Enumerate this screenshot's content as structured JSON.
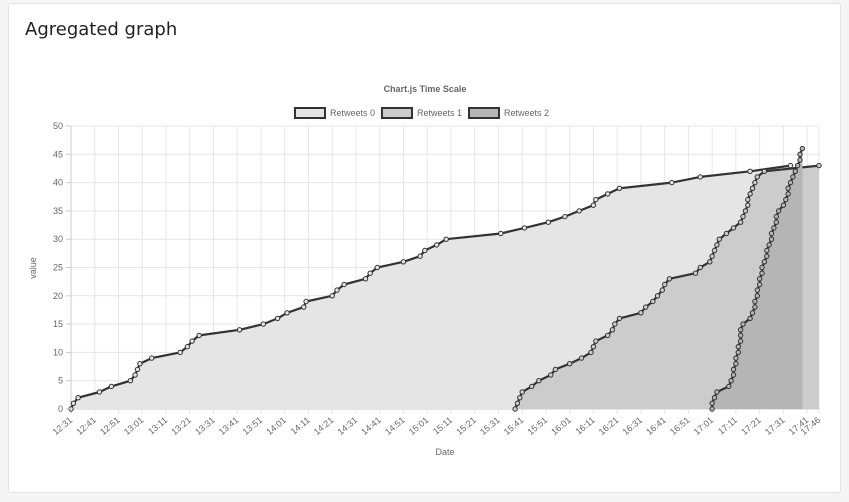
{
  "panel": {
    "title": "Agregated graph"
  },
  "chart_data": {
    "type": "area",
    "title": "Chart.js Time Scale",
    "xlabel": "Date",
    "ylabel": "value",
    "ylim": [
      0,
      50
    ],
    "xlim": [
      "12:31",
      "17:46"
    ],
    "grid": true,
    "legend": "top",
    "y_ticks": [
      "0",
      "5",
      "10",
      "15",
      "20",
      "25",
      "30",
      "35",
      "40",
      "45",
      "50"
    ],
    "x_ticks": [
      "12:31",
      "12:41",
      "12:51",
      "13:01",
      "13:11",
      "13:21",
      "13:31",
      "13:41",
      "13:51",
      "14:01",
      "14:11",
      "14:21",
      "14:31",
      "14:41",
      "14:51",
      "15:01",
      "15:11",
      "15:21",
      "15:31",
      "15:41",
      "15:51",
      "16:01",
      "16:11",
      "16:21",
      "16:31",
      "16:41",
      "16:51",
      "17:01",
      "17:11",
      "17:21",
      "17:31",
      "17:41",
      "17:46"
    ],
    "series": [
      {
        "name": "Retweets 0",
        "fill": "#e5e5e5",
        "points": [
          [
            "12:31",
            0
          ],
          [
            "12:32",
            1
          ],
          [
            "12:34",
            2
          ],
          [
            "12:43",
            3
          ],
          [
            "12:48",
            4
          ],
          [
            "12:56",
            5
          ],
          [
            "12:58",
            6
          ],
          [
            "12:59",
            7
          ],
          [
            "13:00",
            8
          ],
          [
            "13:05",
            9
          ],
          [
            "13:17",
            10
          ],
          [
            "13:20",
            11
          ],
          [
            "13:22",
            12
          ],
          [
            "13:25",
            13
          ],
          [
            "13:42",
            14
          ],
          [
            "13:52",
            15
          ],
          [
            "13:58",
            16
          ],
          [
            "14:02",
            17
          ],
          [
            "14:09",
            18
          ],
          [
            "14:10",
            19
          ],
          [
            "14:21",
            20
          ],
          [
            "14:23",
            21
          ],
          [
            "14:26",
            22
          ],
          [
            "14:35",
            23
          ],
          [
            "14:37",
            24
          ],
          [
            "14:40",
            25
          ],
          [
            "14:51",
            26
          ],
          [
            "14:58",
            27
          ],
          [
            "15:00",
            28
          ],
          [
            "15:05",
            29
          ],
          [
            "15:09",
            30
          ],
          [
            "15:32",
            31
          ],
          [
            "15:42",
            32
          ],
          [
            "15:52",
            33
          ],
          [
            "15:59",
            34
          ],
          [
            "16:05",
            35
          ],
          [
            "16:11",
            36
          ],
          [
            "16:12",
            37
          ],
          [
            "16:17",
            38
          ],
          [
            "16:22",
            39
          ],
          [
            "16:44",
            40
          ],
          [
            "16:56",
            41
          ],
          [
            "17:17",
            42
          ],
          [
            "17:34",
            43
          ]
        ]
      },
      {
        "name": "Retweets 1",
        "fill": "#cccccc",
        "points": [
          [
            "15:38",
            0
          ],
          [
            "15:39",
            1
          ],
          [
            "15:40",
            2
          ],
          [
            "15:41",
            3
          ],
          [
            "15:45",
            4
          ],
          [
            "15:48",
            5
          ],
          [
            "15:53",
            6
          ],
          [
            "15:55",
            7
          ],
          [
            "16:01",
            8
          ],
          [
            "16:06",
            9
          ],
          [
            "16:10",
            10
          ],
          [
            "16:11",
            11
          ],
          [
            "16:12",
            12
          ],
          [
            "16:17",
            13
          ],
          [
            "16:19",
            14
          ],
          [
            "16:20",
            15
          ],
          [
            "16:22",
            16
          ],
          [
            "16:31",
            17
          ],
          [
            "16:33",
            18
          ],
          [
            "16:36",
            19
          ],
          [
            "16:38",
            20
          ],
          [
            "16:40",
            21
          ],
          [
            "16:41",
            22
          ],
          [
            "16:43",
            23
          ],
          [
            "16:54",
            24
          ],
          [
            "16:56",
            25
          ],
          [
            "17:00",
            26
          ],
          [
            "17:01",
            27
          ],
          [
            "17:02",
            28
          ],
          [
            "17:03",
            29
          ],
          [
            "17:04",
            30
          ],
          [
            "17:07",
            31
          ],
          [
            "17:10",
            32
          ],
          [
            "17:13",
            33
          ],
          [
            "17:14",
            34
          ],
          [
            "17:15",
            35
          ],
          [
            "17:16",
            36
          ],
          [
            "17:16",
            37
          ],
          [
            "17:17",
            38
          ],
          [
            "17:18",
            39
          ],
          [
            "17:19",
            40
          ],
          [
            "17:20",
            41
          ],
          [
            "17:23",
            42
          ],
          [
            "17:46",
            43
          ]
        ]
      },
      {
        "name": "Retweets 2",
        "fill": "#b5b5b5",
        "points": [
          [
            "17:01",
            0
          ],
          [
            "17:01",
            1
          ],
          [
            "17:02",
            2
          ],
          [
            "17:03",
            3
          ],
          [
            "17:08",
            4
          ],
          [
            "17:09",
            5
          ],
          [
            "17:10",
            6
          ],
          [
            "17:10",
            7
          ],
          [
            "17:11",
            8
          ],
          [
            "17:11",
            9
          ],
          [
            "17:12",
            10
          ],
          [
            "17:12",
            11
          ],
          [
            "17:13",
            12
          ],
          [
            "17:13",
            13
          ],
          [
            "17:13",
            14
          ],
          [
            "17:14",
            15
          ],
          [
            "17:17",
            16
          ],
          [
            "17:18",
            17
          ],
          [
            "17:19",
            18
          ],
          [
            "17:19",
            19
          ],
          [
            "17:20",
            20
          ],
          [
            "17:20",
            21
          ],
          [
            "17:21",
            22
          ],
          [
            "17:21",
            23
          ],
          [
            "17:22",
            24
          ],
          [
            "17:22",
            25
          ],
          [
            "17:23",
            26
          ],
          [
            "17:24",
            27
          ],
          [
            "17:24",
            28
          ],
          [
            "17:25",
            29
          ],
          [
            "17:26",
            30
          ],
          [
            "17:26",
            31
          ],
          [
            "17:27",
            32
          ],
          [
            "17:28",
            33
          ],
          [
            "17:28",
            34
          ],
          [
            "17:29",
            35
          ],
          [
            "17:31",
            36
          ],
          [
            "17:32",
            37
          ],
          [
            "17:33",
            38
          ],
          [
            "17:33",
            39
          ],
          [
            "17:34",
            40
          ],
          [
            "17:35",
            41
          ],
          [
            "17:36",
            42
          ],
          [
            "17:37",
            43
          ],
          [
            "17:38",
            44
          ],
          [
            "17:38",
            45
          ],
          [
            "17:39",
            46
          ]
        ]
      }
    ]
  },
  "colors": {
    "line": "#333333",
    "grid": "#e6e6e6",
    "axis": "#cccccc",
    "text": "#666666"
  }
}
